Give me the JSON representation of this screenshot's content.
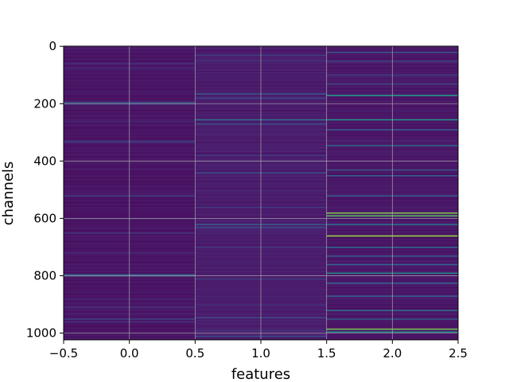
{
  "chart_data": {
    "type": "heatmap",
    "title": "",
    "xlabel": "features",
    "ylabel": "channels",
    "xlim": [
      -0.5,
      2.5
    ],
    "ylim": [
      1023.5,
      -0.5
    ],
    "y_inverted": true,
    "x_ticks": [
      -0.5,
      0.0,
      0.5,
      1.0,
      1.5,
      2.0,
      2.5
    ],
    "x_tick_labels": [
      "−0.5",
      "0.0",
      "0.5",
      "1.0",
      "1.5",
      "2.0",
      "2.5"
    ],
    "y_ticks": [
      0,
      200,
      400,
      600,
      800,
      1000
    ],
    "y_tick_labels": [
      "0",
      "200",
      "400",
      "600",
      "800",
      "1000"
    ],
    "grid": true,
    "colormap": "viridis",
    "n_columns": 3,
    "n_rows": 1024,
    "columns": [
      {
        "feature": 0,
        "base_value": 0.05,
        "highlights": [
          {
            "channel": 60,
            "value": 0.16
          },
          {
            "channel": 75,
            "value": 0.14
          },
          {
            "channel": 195,
            "value": 0.28
          },
          {
            "channel": 200,
            "value": 0.2
          },
          {
            "channel": 260,
            "value": 0.14
          },
          {
            "channel": 330,
            "value": 0.2
          },
          {
            "channel": 335,
            "value": 0.15
          },
          {
            "channel": 520,
            "value": 0.22
          },
          {
            "channel": 600,
            "value": 0.14
          },
          {
            "channel": 650,
            "value": 0.16
          },
          {
            "channel": 720,
            "value": 0.14
          },
          {
            "channel": 795,
            "value": 0.32
          },
          {
            "channel": 800,
            "value": 0.22
          },
          {
            "channel": 880,
            "value": 0.14
          },
          {
            "channel": 910,
            "value": 0.16
          },
          {
            "channel": 950,
            "value": 0.22
          },
          {
            "channel": 960,
            "value": 0.16
          }
        ]
      },
      {
        "feature": 1,
        "base_value": 0.08,
        "highlights": [
          {
            "channel": 30,
            "value": 0.2
          },
          {
            "channel": 50,
            "value": 0.18
          },
          {
            "channel": 165,
            "value": 0.28
          },
          {
            "channel": 180,
            "value": 0.22
          },
          {
            "channel": 255,
            "value": 0.38
          },
          {
            "channel": 270,
            "value": 0.26
          },
          {
            "channel": 380,
            "value": 0.18
          },
          {
            "channel": 440,
            "value": 0.24
          },
          {
            "channel": 560,
            "value": 0.18
          },
          {
            "channel": 620,
            "value": 0.3
          },
          {
            "channel": 630,
            "value": 0.24
          },
          {
            "channel": 700,
            "value": 0.18
          },
          {
            "channel": 810,
            "value": 0.2
          },
          {
            "channel": 900,
            "value": 0.16
          },
          {
            "channel": 945,
            "value": 0.22
          },
          {
            "channel": 990,
            "value": 0.18
          },
          {
            "channel": 1010,
            "value": 0.24
          }
        ]
      },
      {
        "feature": 2,
        "base_value": 0.06,
        "highlights": [
          {
            "channel": 20,
            "value": 0.26
          },
          {
            "channel": 50,
            "value": 0.22
          },
          {
            "channel": 100,
            "value": 0.2
          },
          {
            "channel": 130,
            "value": 0.2
          },
          {
            "channel": 170,
            "value": 0.55
          },
          {
            "channel": 255,
            "value": 0.52
          },
          {
            "channel": 290,
            "value": 0.3
          },
          {
            "channel": 345,
            "value": 0.36
          },
          {
            "channel": 430,
            "value": 0.28
          },
          {
            "channel": 450,
            "value": 0.3
          },
          {
            "channel": 520,
            "value": 0.3
          },
          {
            "channel": 580,
            "value": 0.82
          },
          {
            "channel": 590,
            "value": 0.75
          },
          {
            "channel": 620,
            "value": 0.4
          },
          {
            "channel": 660,
            "value": 0.85
          },
          {
            "channel": 700,
            "value": 0.36
          },
          {
            "channel": 730,
            "value": 0.3
          },
          {
            "channel": 760,
            "value": 0.32
          },
          {
            "channel": 790,
            "value": 0.48
          },
          {
            "channel": 825,
            "value": 0.32
          },
          {
            "channel": 870,
            "value": 0.3
          },
          {
            "channel": 920,
            "value": 0.38
          },
          {
            "channel": 950,
            "value": 0.3
          },
          {
            "channel": 985,
            "value": 0.8
          },
          {
            "channel": 995,
            "value": 0.5
          }
        ]
      }
    ]
  }
}
